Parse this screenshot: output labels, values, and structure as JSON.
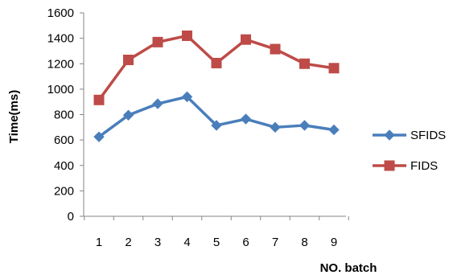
{
  "chart_data": {
    "type": "line",
    "x": [
      1,
      2,
      3,
      4,
      5,
      6,
      7,
      8,
      9
    ],
    "xlabel": "NO. batch",
    "ylabel": "Time(ms)",
    "ylim": [
      0,
      1600
    ],
    "yticks": [
      0,
      200,
      400,
      600,
      800,
      1000,
      1200,
      1400,
      1600
    ],
    "grid": false,
    "legend_position": "right",
    "series": [
      {
        "name": "SFIDS",
        "color": "#4a7ebb",
        "marker": "diamond",
        "values": [
          625,
          795,
          885,
          940,
          715,
          765,
          700,
          715,
          680
        ]
      },
      {
        "name": "FIDS",
        "color": "#be4b48",
        "marker": "square",
        "values": [
          915,
          1230,
          1370,
          1420,
          1205,
          1390,
          1315,
          1200,
          1165
        ]
      }
    ]
  }
}
